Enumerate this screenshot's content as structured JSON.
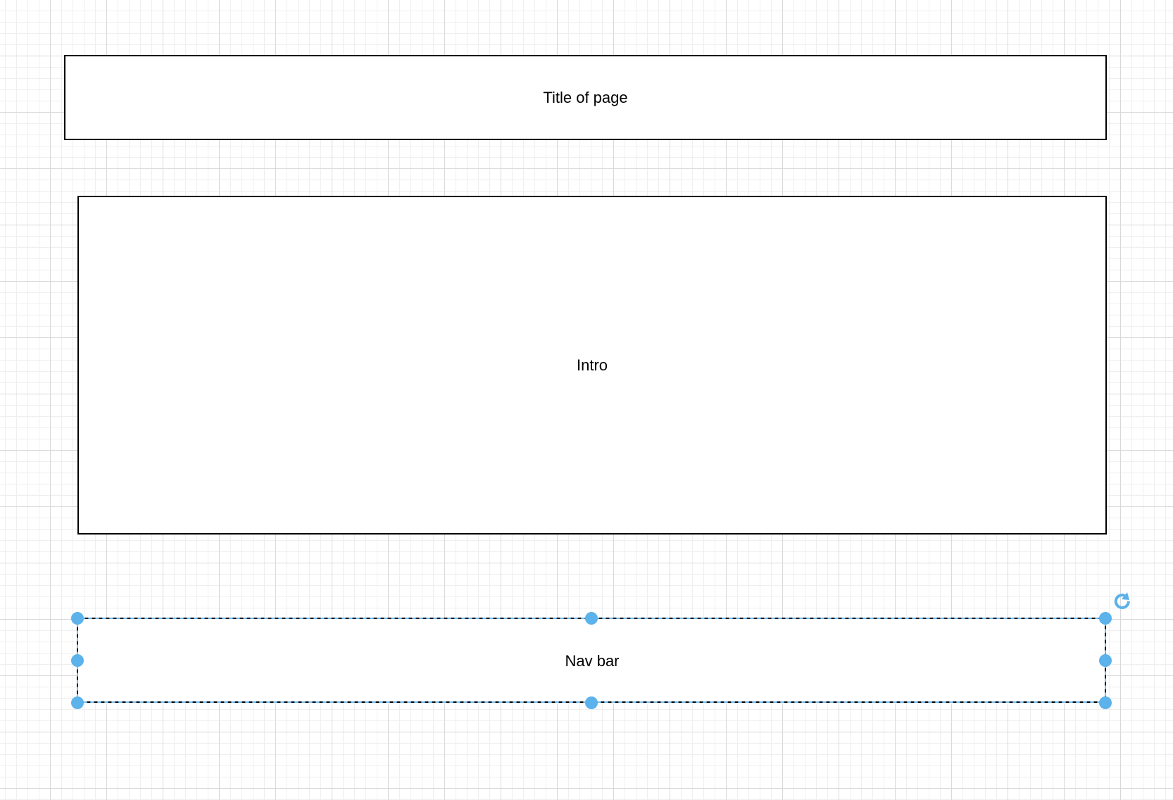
{
  "diagram": {
    "shapes": [
      {
        "id": "title",
        "label": "Title of page"
      },
      {
        "id": "intro",
        "label": "Intro"
      },
      {
        "id": "nav",
        "label": "Nav bar",
        "selected": true
      }
    ]
  },
  "colors": {
    "canvas": "#ffffff",
    "grid_major": "#d9d9d9",
    "grid_minor": "#efefef",
    "shape_stroke": "#000000",
    "selection": "#4ba8e6",
    "handle": "#5cb2ea"
  },
  "icons": {
    "rotate": "rotate-icon"
  }
}
